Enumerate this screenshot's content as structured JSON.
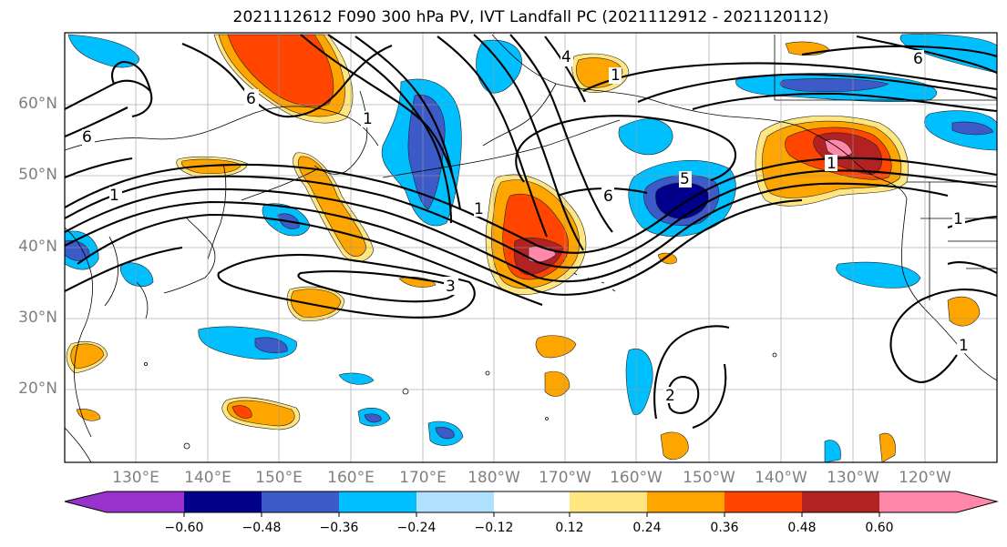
{
  "title": "2021112612 F090 300 hPa PV, IVT Landfall PC (2021112912 - 2021120112)",
  "map": {
    "lat_labels": [
      "60°N",
      "50°N",
      "40°N",
      "30°N",
      "20°N"
    ],
    "lon_labels": [
      "130°E",
      "140°E",
      "150°E",
      "160°E",
      "170°E",
      "180°W",
      "170°W",
      "160°W",
      "150°W",
      "140°W",
      "130°W",
      "120°W"
    ],
    "contour_labels": [
      "6",
      "6",
      "4",
      "1",
      "5",
      "1",
      "1",
      "6",
      "6",
      "3",
      "1",
      "1",
      "1",
      "2",
      "1"
    ]
  },
  "colorbar": {
    "labels": [
      "−0.60",
      "−0.48",
      "−0.36",
      "−0.24",
      "−0.12",
      "0.12",
      "0.24",
      "0.36",
      "0.48",
      "0.60"
    ],
    "colors": [
      "#9932cc",
      "#00008b",
      "#3c5ac8",
      "#00bfff",
      "#b0e2ff",
      "#ffffff",
      "#ffe680",
      "#ffa500",
      "#ff4500",
      "#b22222",
      "#ff88aa"
    ]
  }
}
